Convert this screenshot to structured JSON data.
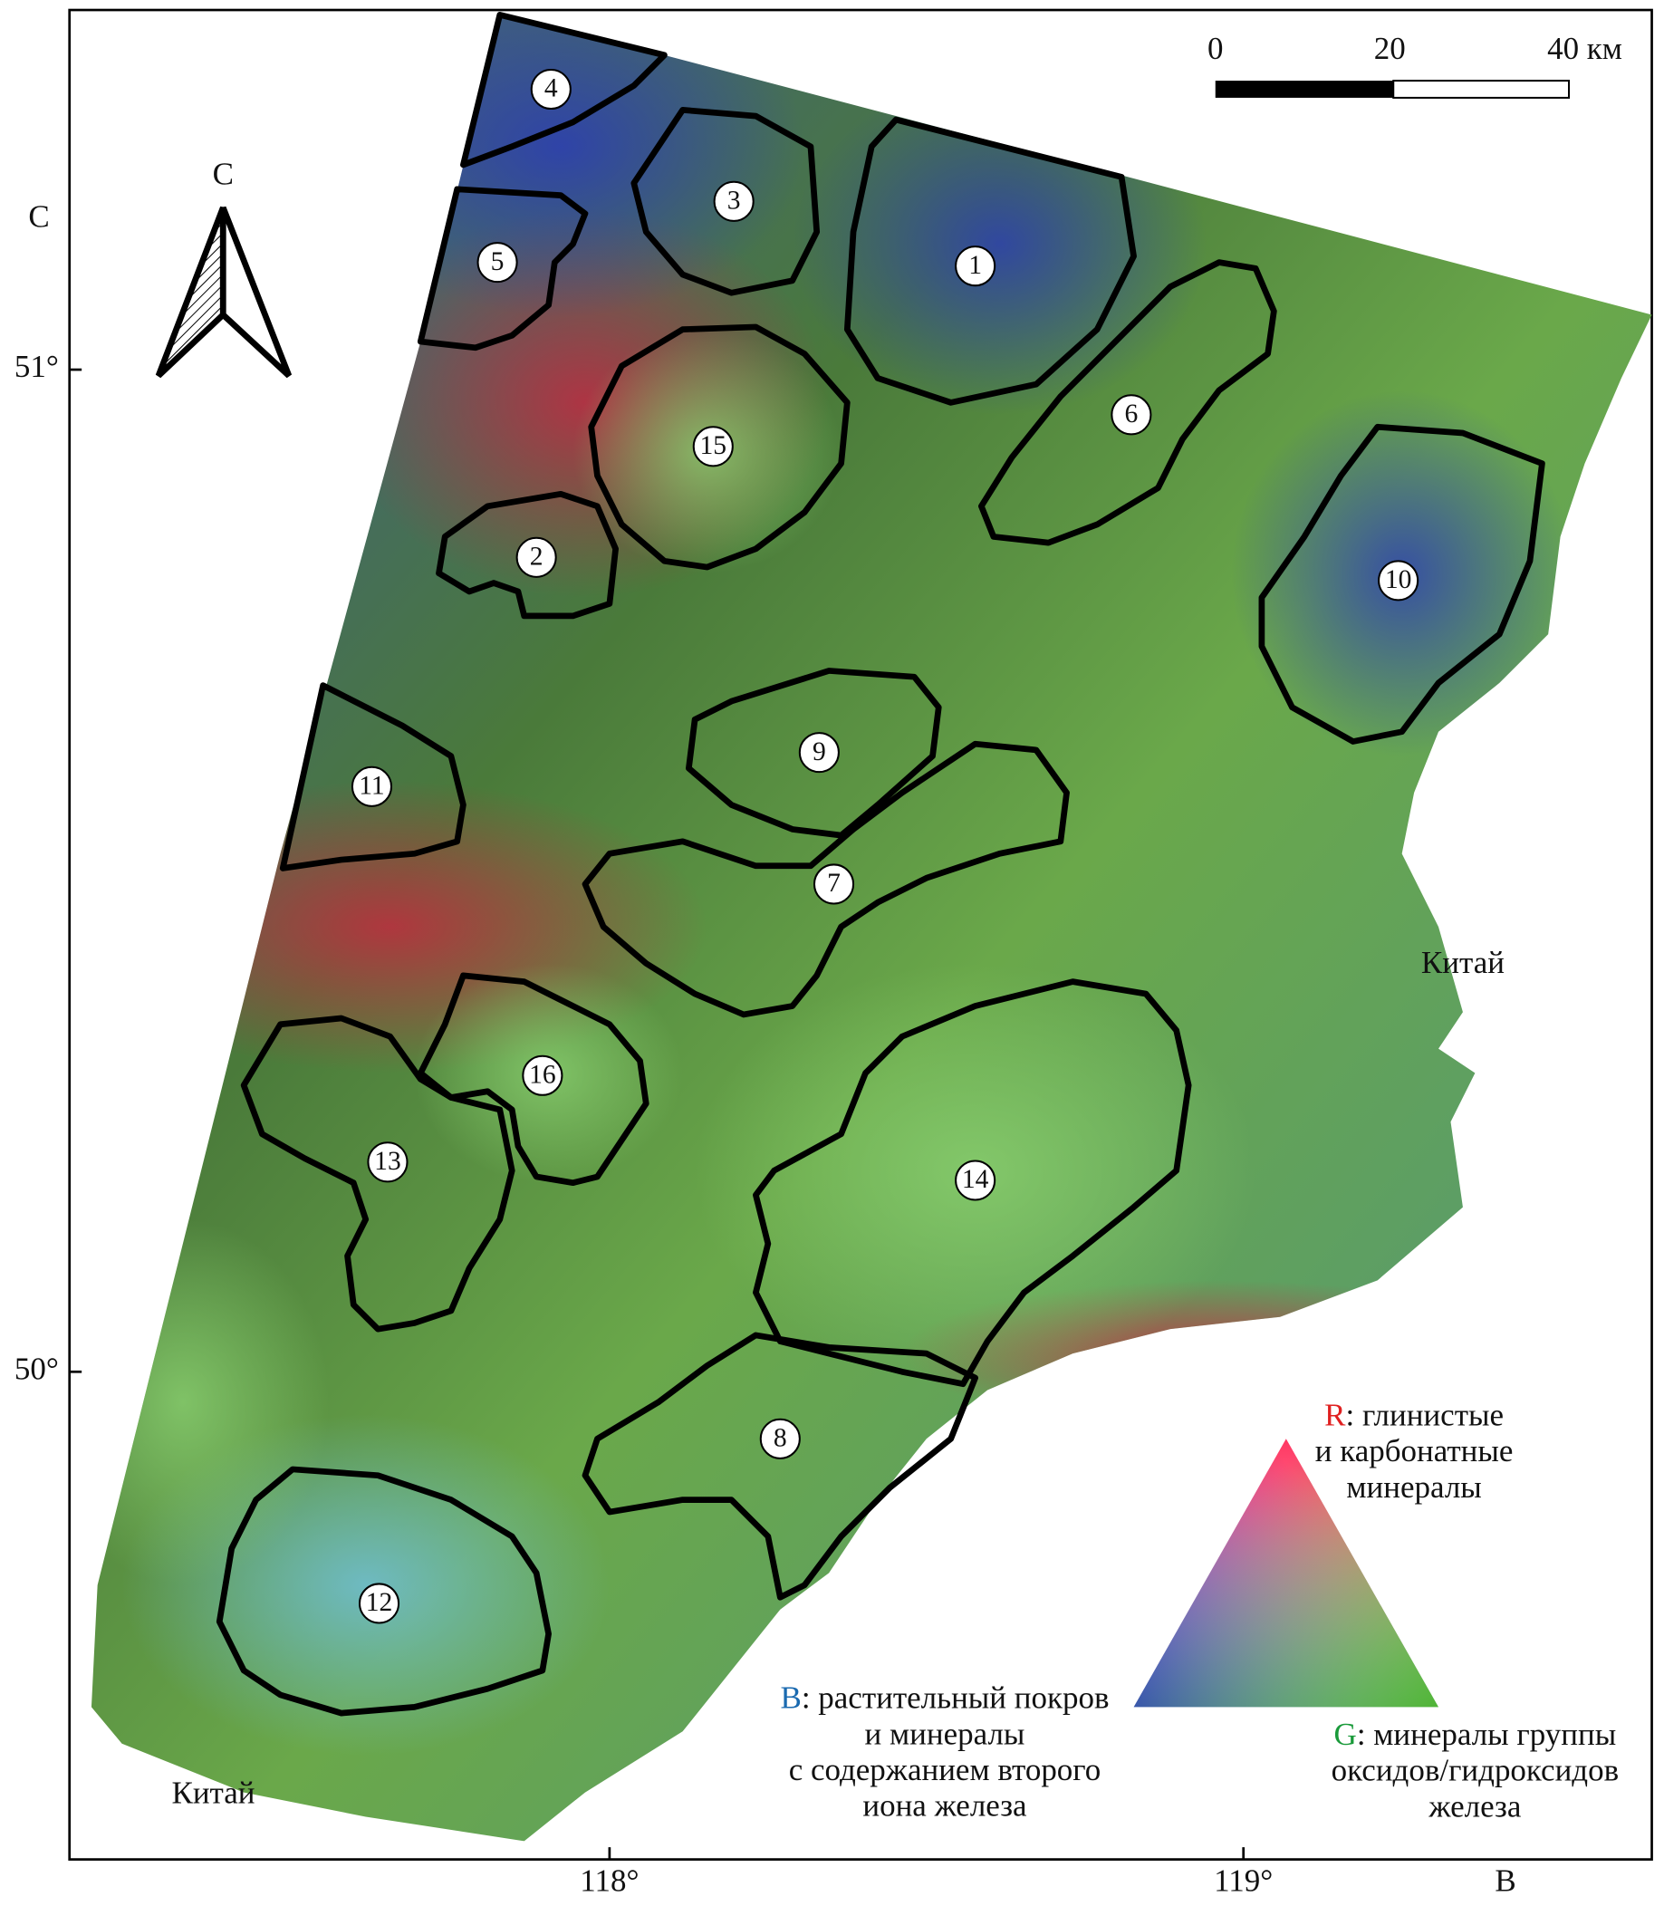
{
  "scale_bar": {
    "ticks": [
      "0",
      "20",
      "40 км"
    ]
  },
  "north_arrow": {
    "label": "С"
  },
  "axes": {
    "north_label": "С",
    "east_label": "В",
    "latitudes": [
      "51°",
      "50°"
    ],
    "longitudes": [
      "118°",
      "119°"
    ]
  },
  "country_labels": [
    "Китай",
    "Китай"
  ],
  "regions": [
    "1",
    "2",
    "3",
    "4",
    "5",
    "6",
    "7",
    "8",
    "9",
    "10",
    "11",
    "12",
    "13",
    "14",
    "15",
    "16"
  ],
  "legend": {
    "red": {
      "key": "R",
      "lines": [
        ": глинистые",
        "и карбонатные",
        "минералы"
      ]
    },
    "blue": {
      "key": "B",
      "lines": [
        ": растительный покров",
        "и минералы",
        "с содержанием второго",
        "иона железа"
      ]
    },
    "green": {
      "key": "G",
      "lines": [
        ": минералы группы",
        "оксидов/гидроксидов",
        "железа"
      ]
    }
  }
}
